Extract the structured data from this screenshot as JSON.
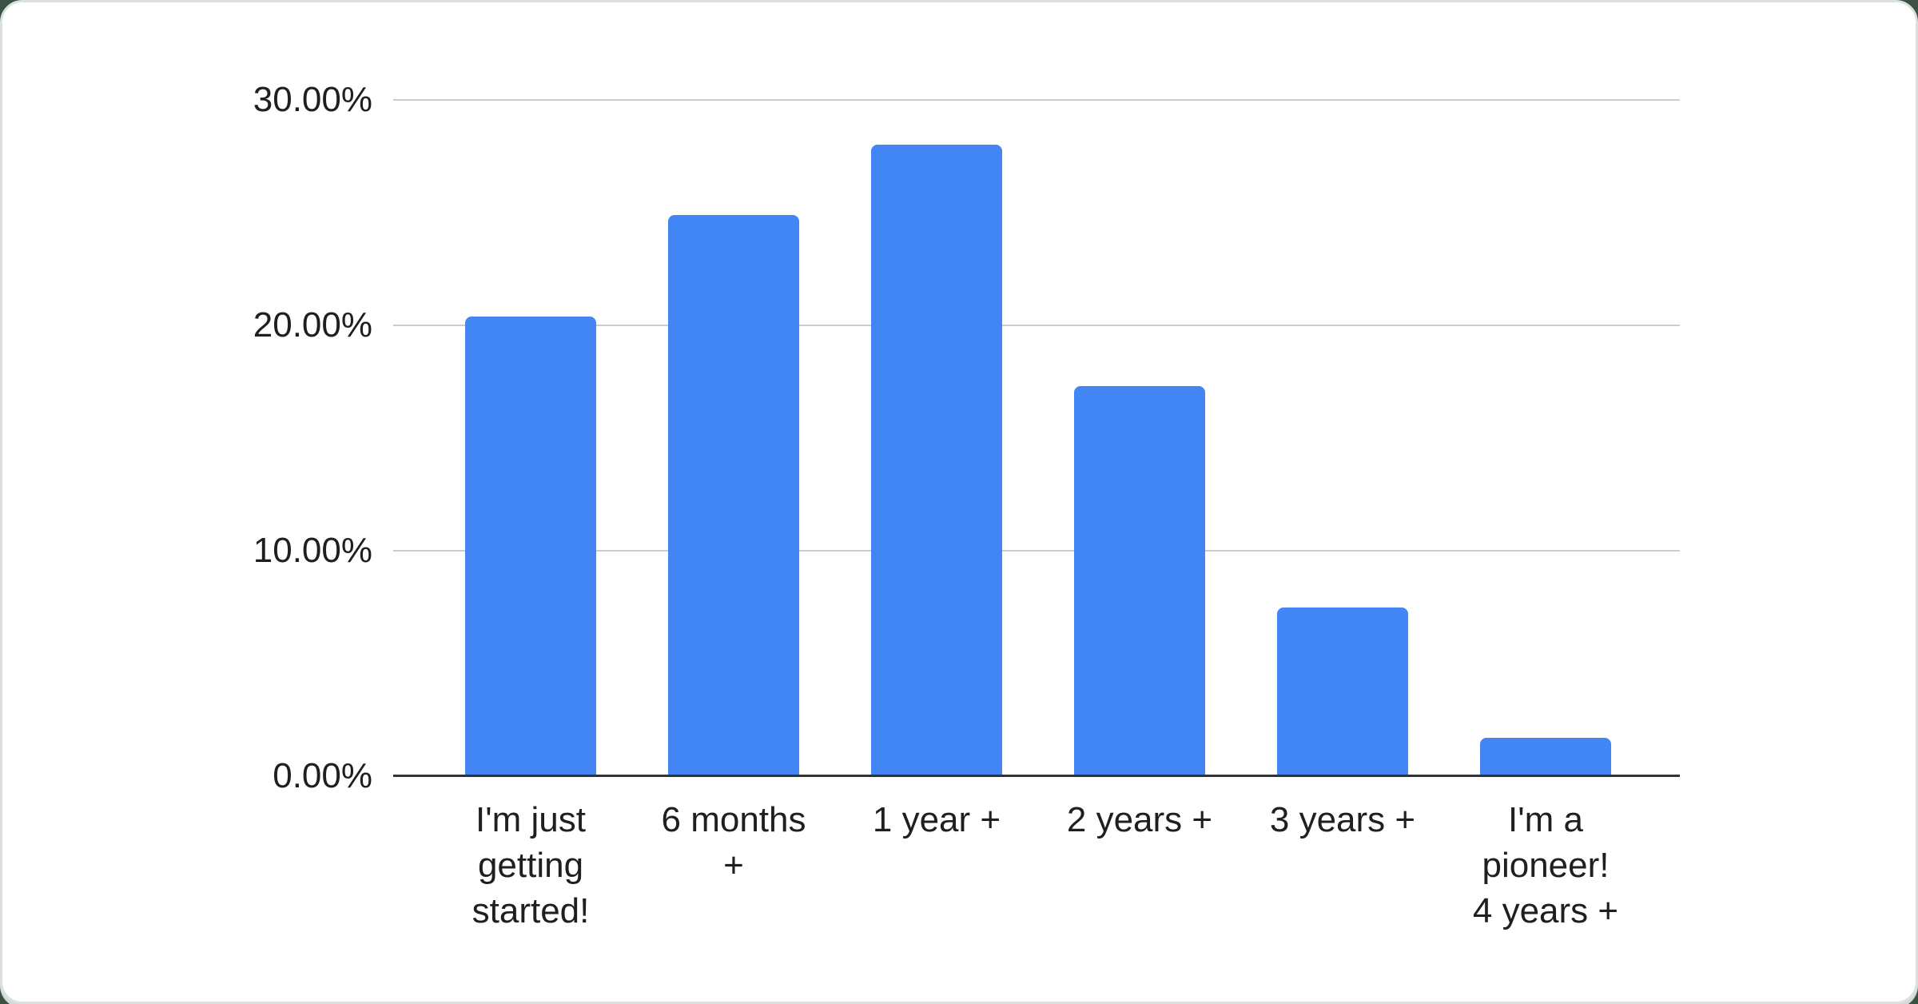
{
  "page": {
    "background_color": "#3a5244",
    "card_color": "#ffffff",
    "rim_color": "#dbe1de"
  },
  "chart_data": {
    "type": "bar",
    "title": "",
    "xlabel": "",
    "ylabel": "",
    "categories": [
      "I'm just getting started!",
      "6 months +",
      "1 year +",
      "2 years +",
      "3 years +",
      "I'm a pioneer! 4 years +"
    ],
    "category_display_lines": [
      "I'm just\ngetting\nstarted!",
      "6 months\n+",
      "1 year +",
      "2 years +",
      "3 years +",
      "I'm a\npioneer!\n4 years +"
    ],
    "values": [
      20.4,
      24.9,
      28.0,
      17.3,
      7.5,
      1.7
    ],
    "value_unit": "%",
    "ylim": [
      0,
      30
    ],
    "y_ticks": [
      "30.00%",
      "20.00%",
      "10.00%",
      "0.00%"
    ],
    "y_tick_values": [
      30,
      20,
      10,
      0
    ],
    "grid": true,
    "legend_position": "none",
    "bar_color": "#4285f4",
    "gridline_color": "#cccccc",
    "axis_line_color": "#333333",
    "label_color": "#1f1f1f"
  }
}
